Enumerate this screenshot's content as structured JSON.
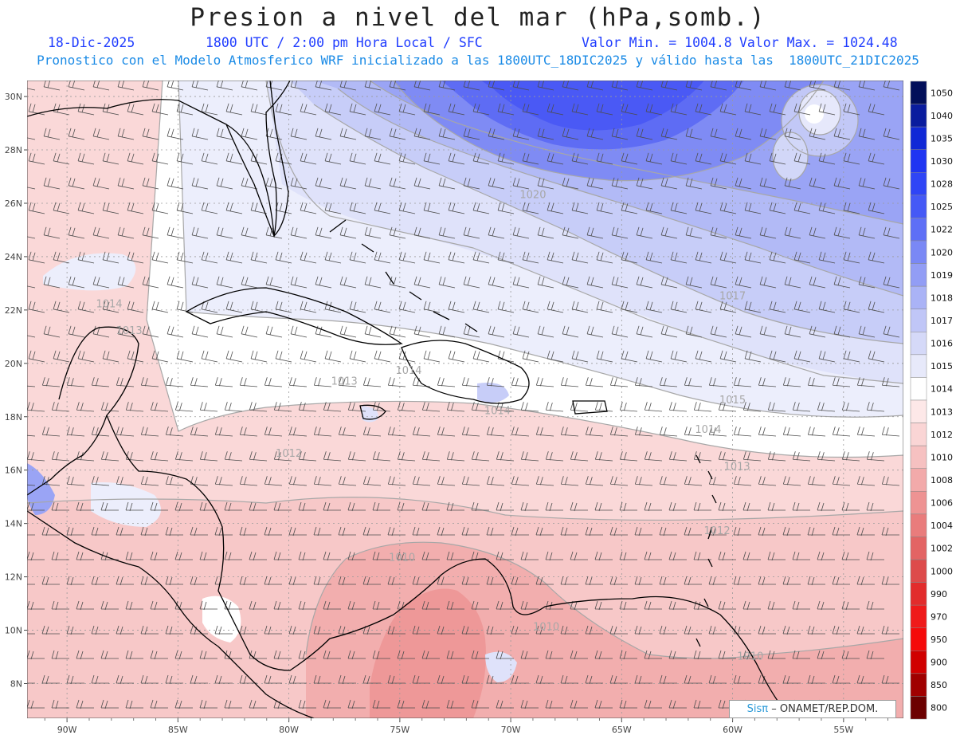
{
  "header": {
    "title": "Presion a nivel del mar (hPa,somb.)",
    "date": "18-Dic-2025",
    "time": "1800 UTC / 2:00 pm Hora Local / SFC",
    "min_label": "Valor Min. = 1004.8",
    "max_label": "Valor Max. = 1024.48",
    "description": "Pronostico con el Modelo Atmosferico WRF inicializado a las 1800UTC_18DIC2025 y válido hasta las  1800UTC_21DIC2025"
  },
  "map": {
    "lat_labels": [
      "30N",
      "28N",
      "26N",
      "24N",
      "22N",
      "20N",
      "18N",
      "16N",
      "14N",
      "12N",
      "10N",
      "8N"
    ],
    "lon_labels": [
      "90W",
      "85W",
      "80W",
      "75W",
      "70W",
      "65W",
      "60W",
      "55W"
    ],
    "contour_labels": [
      {
        "text": "1020",
        "lon": -69,
        "lat": 26.2
      },
      {
        "text": "1017",
        "lon": -60,
        "lat": 22.4
      },
      {
        "text": "1015",
        "lon": -60,
        "lat": 18.5
      },
      {
        "text": "1014",
        "lon": -61.1,
        "lat": 17.4
      },
      {
        "text": "1014",
        "lon": -88.1,
        "lat": 22.1
      },
      {
        "text": "1014",
        "lon": -74.6,
        "lat": 19.6
      },
      {
        "text": "1014",
        "lon": -70.6,
        "lat": 18.1
      },
      {
        "text": "1013",
        "lon": -77.5,
        "lat": 19.2
      },
      {
        "text": "1013",
        "lon": -59.8,
        "lat": 16.0
      },
      {
        "text": "1012",
        "lon": -80,
        "lat": 16.5
      },
      {
        "text": "1012",
        "lon": -60.7,
        "lat": 13.6
      },
      {
        "text": "1010",
        "lon": -74.9,
        "lat": 12.6
      },
      {
        "text": "1010",
        "lon": -68.4,
        "lat": 10.0
      },
      {
        "text": "1010",
        "lon": -59.2,
        "lat": 8.9
      },
      {
        "text": "1013",
        "lon": -87.2,
        "lat": 21.1
      }
    ]
  },
  "legend": {
    "levels": [
      "1050",
      "1040",
      "1035",
      "1030",
      "1028",
      "1025",
      "1022",
      "1020",
      "1019",
      "1018",
      "1017",
      "1016",
      "1015",
      "1014",
      "1013",
      "1012",
      "1010",
      "1008",
      "1006",
      "1004",
      "1002",
      "1000",
      "990",
      "970",
      "950",
      "900",
      "850",
      "800"
    ],
    "colors": [
      "#020f5a",
      "#0a1c9e",
      "#1028d6",
      "#1f35f2",
      "#2f45f6",
      "#4559f6",
      "#5e6ff6",
      "#7a88f5",
      "#929df5",
      "#aab3f6",
      "#c0c6f7",
      "#d5d9f8",
      "#e7e9fa",
      "#ffffff",
      "#fde8e8",
      "#fad5d5",
      "#f6c1c1",
      "#f2aaaa",
      "#ee9393",
      "#e97c7c",
      "#e36464",
      "#dd4b4b",
      "#e22c2c",
      "#ef1a1a",
      "#f50a0a",
      "#d00000",
      "#a00000",
      "#6c0000"
    ]
  },
  "footer": {
    "brand": "Sisπ",
    "text": "– ONAMET/REP.DOM."
  }
}
